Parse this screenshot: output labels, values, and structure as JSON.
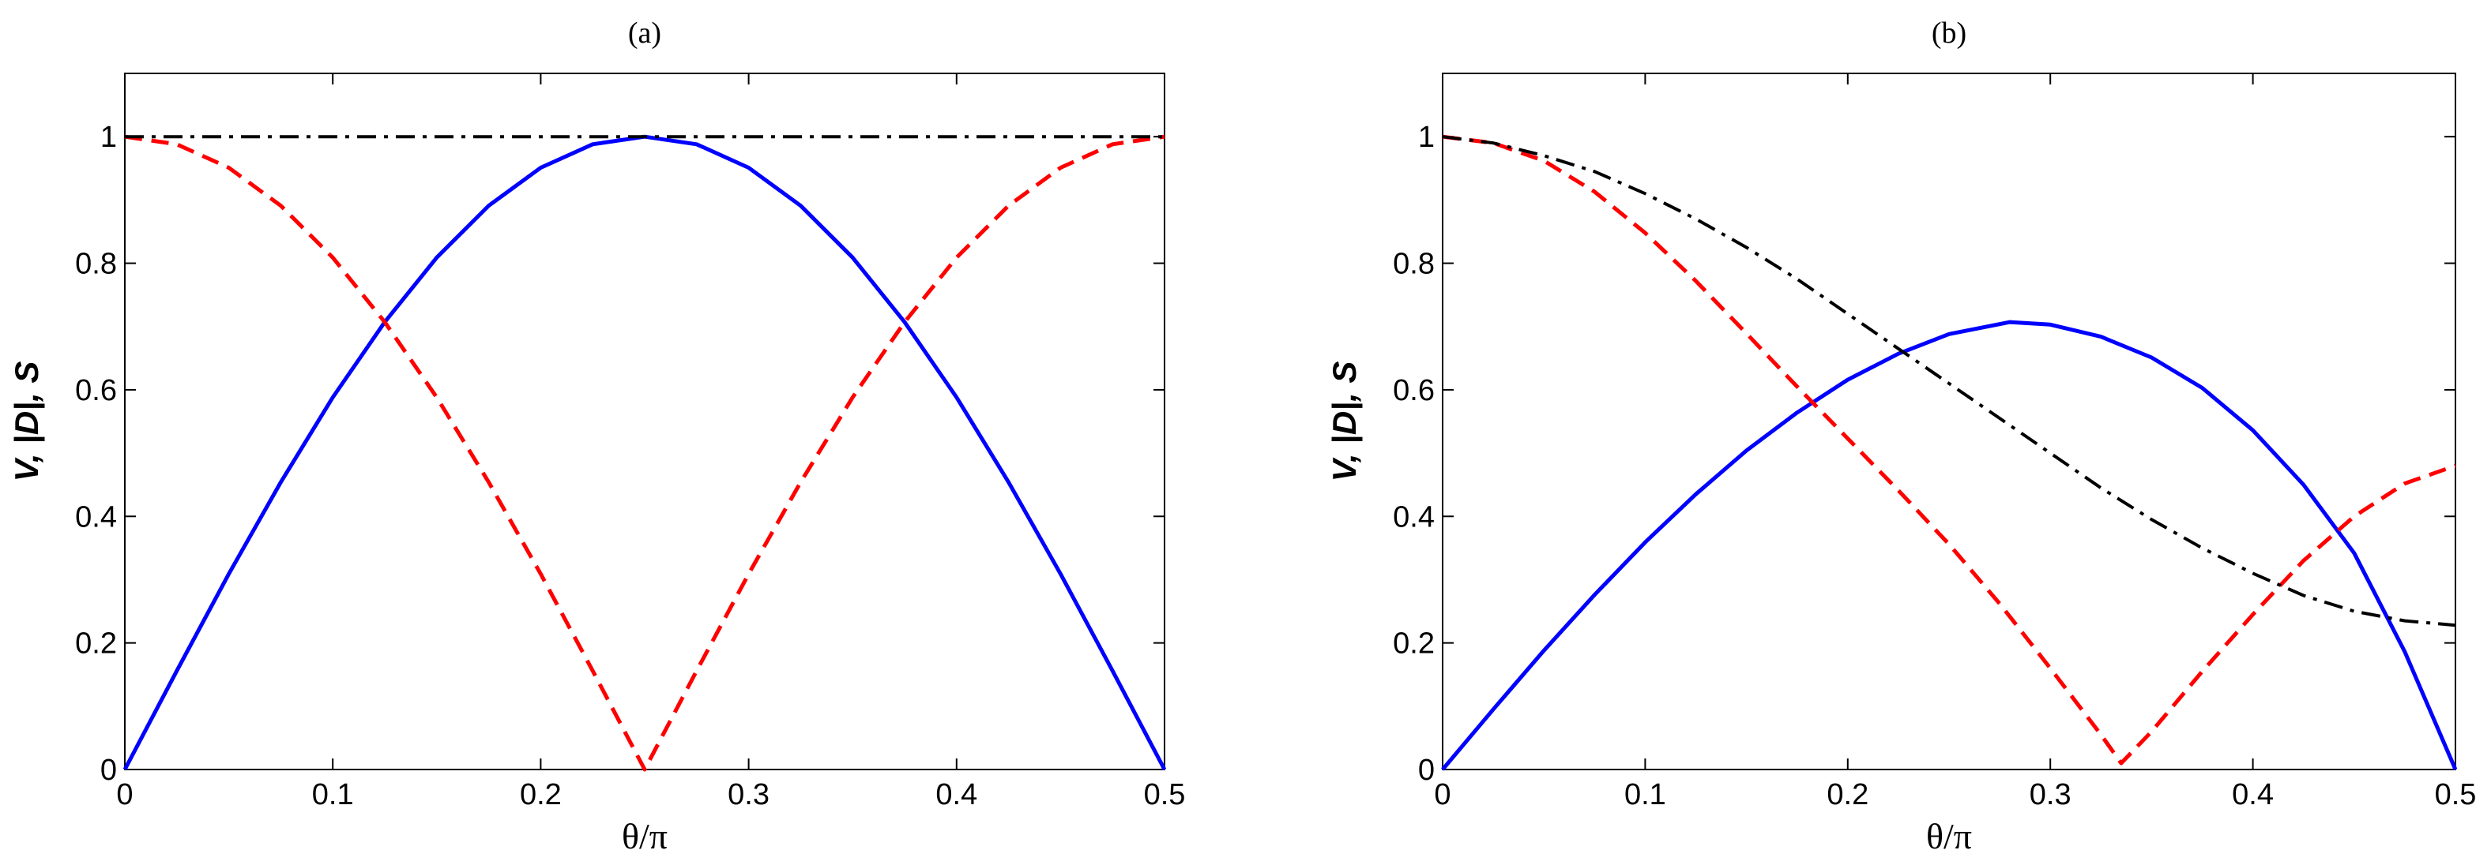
{
  "chart_data": [
    {
      "type": "line",
      "title": "(a)",
      "xlabel": "θ/π",
      "ylabel": "V, |D|, S",
      "xlim": [
        0,
        0.5
      ],
      "ylim": [
        0,
        1.1
      ],
      "xticks": [
        "0",
        "0.1",
        "0.2",
        "0.3",
        "0.4",
        "0.5"
      ],
      "yticks": [
        "0",
        "0.2",
        "0.4",
        "0.6",
        "0.8",
        "1"
      ],
      "grid": false,
      "series": [
        {
          "name": "V",
          "color": "#0000ff",
          "style": "solid",
          "x": [
            0,
            0.025,
            0.05,
            0.075,
            0.1,
            0.125,
            0.15,
            0.175,
            0.2,
            0.225,
            0.25,
            0.275,
            0.3,
            0.325,
            0.35,
            0.375,
            0.4,
            0.425,
            0.45,
            0.475,
            0.5
          ],
          "y": [
            0,
            0.156,
            0.309,
            0.454,
            0.588,
            0.707,
            0.809,
            0.891,
            0.951,
            0.988,
            1,
            0.988,
            0.951,
            0.891,
            0.809,
            0.707,
            0.588,
            0.454,
            0.309,
            0.156,
            0
          ]
        },
        {
          "name": "|D|",
          "color": "#ff0000",
          "style": "dashed",
          "x": [
            0,
            0.025,
            0.05,
            0.075,
            0.1,
            0.125,
            0.15,
            0.175,
            0.2,
            0.225,
            0.25,
            0.275,
            0.3,
            0.325,
            0.35,
            0.375,
            0.4,
            0.425,
            0.45,
            0.475,
            0.5
          ],
          "y": [
            1,
            0.988,
            0.951,
            0.891,
            0.809,
            0.707,
            0.588,
            0.454,
            0.309,
            0.156,
            0,
            0.156,
            0.309,
            0.454,
            0.588,
            0.707,
            0.809,
            0.891,
            0.951,
            0.988,
            1
          ]
        },
        {
          "name": "S",
          "color": "#000000",
          "style": "dashdot",
          "x": [
            0,
            0.1,
            0.2,
            0.25,
            0.3,
            0.4,
            0.5
          ],
          "y": [
            1,
            1,
            1,
            1,
            1,
            1,
            1
          ]
        }
      ]
    },
    {
      "type": "line",
      "title": "(b)",
      "xlabel": "θ/π",
      "ylabel": "V, |D|, S",
      "xlim": [
        0,
        0.5
      ],
      "ylim": [
        0,
        1.1
      ],
      "xticks": [
        "0",
        "0.1",
        "0.2",
        "0.3",
        "0.4",
        "0.5"
      ],
      "yticks": [
        "0",
        "0.2",
        "0.4",
        "0.6",
        "0.8",
        "1"
      ],
      "grid": false,
      "series": [
        {
          "name": "V",
          "color": "#0000ff",
          "style": "solid",
          "x": [
            0,
            0.025,
            0.05,
            0.075,
            0.1,
            0.125,
            0.15,
            0.175,
            0.2,
            0.225,
            0.25,
            0.28,
            0.3,
            0.325,
            0.35,
            0.375,
            0.4,
            0.425,
            0.45,
            0.475,
            0.5
          ],
          "y": [
            0,
            0.095,
            0.188,
            0.276,
            0.359,
            0.435,
            0.504,
            0.564,
            0.616,
            0.657,
            0.688,
            0.707,
            0.703,
            0.684,
            0.651,
            0.603,
            0.536,
            0.45,
            0.342,
            0.186,
            0
          ]
        },
        {
          "name": "|D|",
          "color": "#ff0000",
          "style": "dashed",
          "x": [
            0,
            0.025,
            0.05,
            0.075,
            0.1,
            0.125,
            0.15,
            0.175,
            0.2,
            0.225,
            0.25,
            0.275,
            0.3,
            0.325,
            0.335,
            0.35,
            0.375,
            0.4,
            0.425,
            0.45,
            0.475,
            0.5
          ],
          "y": [
            1,
            0.99,
            0.962,
            0.913,
            0.848,
            0.772,
            0.689,
            0.605,
            0.523,
            0.441,
            0.356,
            0.262,
            0.16,
            0.055,
            0.01,
            0.06,
            0.155,
            0.245,
            0.33,
            0.4,
            0.452,
            0.48
          ]
        },
        {
          "name": "S",
          "color": "#000000",
          "style": "dashdot",
          "x": [
            0,
            0.025,
            0.05,
            0.075,
            0.1,
            0.125,
            0.15,
            0.175,
            0.2,
            0.225,
            0.25,
            0.275,
            0.3,
            0.325,
            0.35,
            0.375,
            0.4,
            0.425,
            0.45,
            0.475,
            0.5
          ],
          "y": [
            1,
            0.99,
            0.97,
            0.945,
            0.91,
            0.87,
            0.825,
            0.775,
            0.72,
            0.665,
            0.61,
            0.555,
            0.5,
            0.445,
            0.395,
            0.35,
            0.31,
            0.275,
            0.25,
            0.235,
            0.228
          ]
        }
      ]
    }
  ]
}
